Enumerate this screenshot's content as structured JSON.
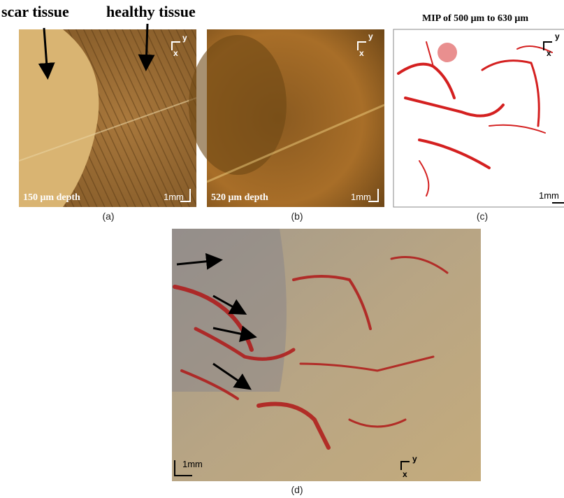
{
  "panels": [
    {
      "label": "(a)",
      "annotations": [
        "scar tissue",
        "healthy tissue"
      ],
      "depth": "150 μm depth",
      "scale_bar": "1mm",
      "axis_y": "y",
      "axis_x": "x"
    },
    {
      "label": "(b)",
      "depth": "520 μm depth",
      "scale_bar": "1mm",
      "axis_y": "y",
      "axis_x": "x"
    },
    {
      "label": "(c)",
      "title": "MIP of 500 μm to 630 μm",
      "scale_bar": "1mm",
      "axis_y": "y",
      "axis_x": "x"
    },
    {
      "label": "(d)",
      "scale_bar": "1mm",
      "axis_y": "y",
      "axis_x": "x"
    }
  ]
}
